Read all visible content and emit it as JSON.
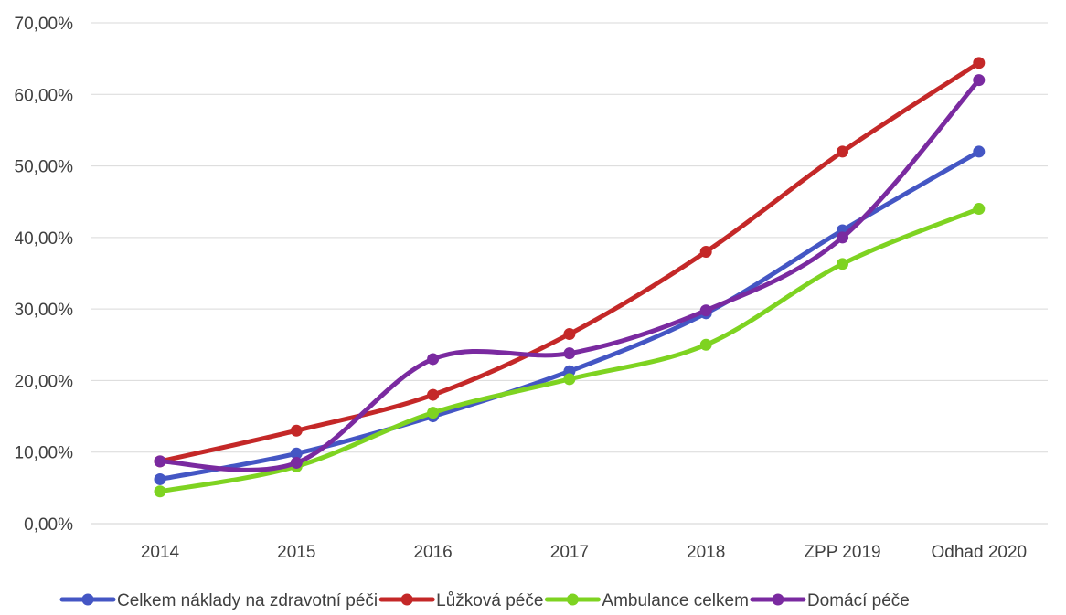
{
  "chart_data": {
    "type": "line",
    "title": "",
    "xlabel": "",
    "ylabel": "",
    "categories": [
      "2014",
      "2015",
      "2016",
      "2017",
      "2018",
      "ZPP 2019",
      "Odhad 2020"
    ],
    "y_ticks": [
      "0,00%",
      "10,00%",
      "20,00%",
      "30,00%",
      "40,00%",
      "50,00%",
      "60,00%",
      "70,00%"
    ],
    "ylim": [
      0,
      70
    ],
    "grid": true,
    "legend_position": "bottom",
    "series": [
      {
        "name": "Celkem náklady na zdravotní péči",
        "color": "#4456c4",
        "values": [
          6.2,
          9.8,
          15.0,
          21.3,
          29.4,
          41.0,
          52.0
        ]
      },
      {
        "name": "Lůžková péče",
        "color": "#c42828",
        "values": [
          8.7,
          13.0,
          18.0,
          26.5,
          38.0,
          52.0,
          64.4
        ]
      },
      {
        "name": "Ambulance celkem",
        "color": "#7ed321",
        "values": [
          4.5,
          8.0,
          15.5,
          20.2,
          25.0,
          36.3,
          44.0
        ]
      },
      {
        "name": "Domácí péče",
        "color": "#7a2aa0",
        "values": [
          8.7,
          8.5,
          23.0,
          23.8,
          29.8,
          40.0,
          62.0
        ]
      }
    ]
  }
}
